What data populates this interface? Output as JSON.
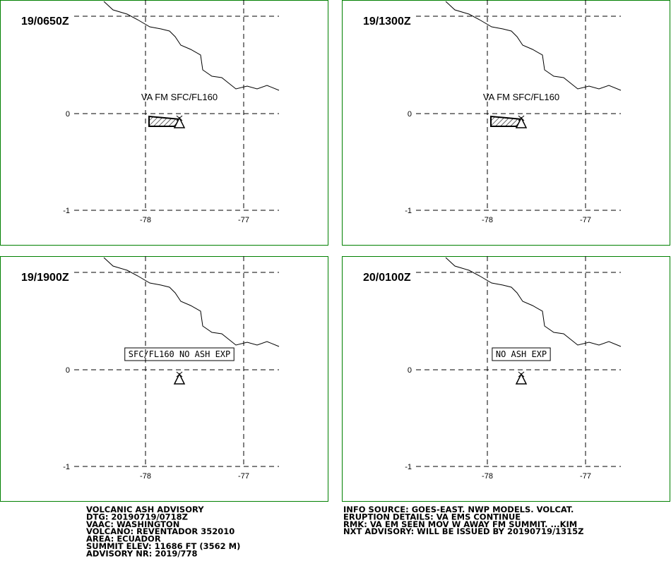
{
  "panels": [
    {
      "time": "19/0650Z",
      "label": "VA FM SFC/FL160"
    },
    {
      "time": "19/1300Z",
      "label": "VA FM SFC/FL160"
    },
    {
      "time": "19/1900Z",
      "label": "SFC/FL160 NO ASH EXP"
    },
    {
      "time": "20/0100Z",
      "label": "NO ASH EXP"
    }
  ],
  "axes": {
    "lat_labels": [
      "0",
      "-1"
    ],
    "lon_labels": [
      "-78",
      "-77"
    ]
  },
  "advisory_left": [
    "VOLCANIC ASH ADVISORY",
    "DTG: 20190719/0718Z",
    "VAAC: WASHINGTON",
    "VOLCANO: REVENTADOR 352010",
    "AREA: ECUADOR",
    "SUMMIT ELEV: 11686 FT (3562 M)",
    "ADVISORY NR: 2019/778"
  ],
  "advisory_right": [
    "INFO SOURCE: GOES-EAST. NWP MODELS. VOLCAT.",
    "ERUPTION DETAILS: VA EMS CONTINUE",
    "RMK: VA EM SEEN MOV W AWAY FM SUMMIT. ...KIM",
    "NXT ADVISORY: WILL BE ISSUED BY 20190719/1315Z"
  ]
}
